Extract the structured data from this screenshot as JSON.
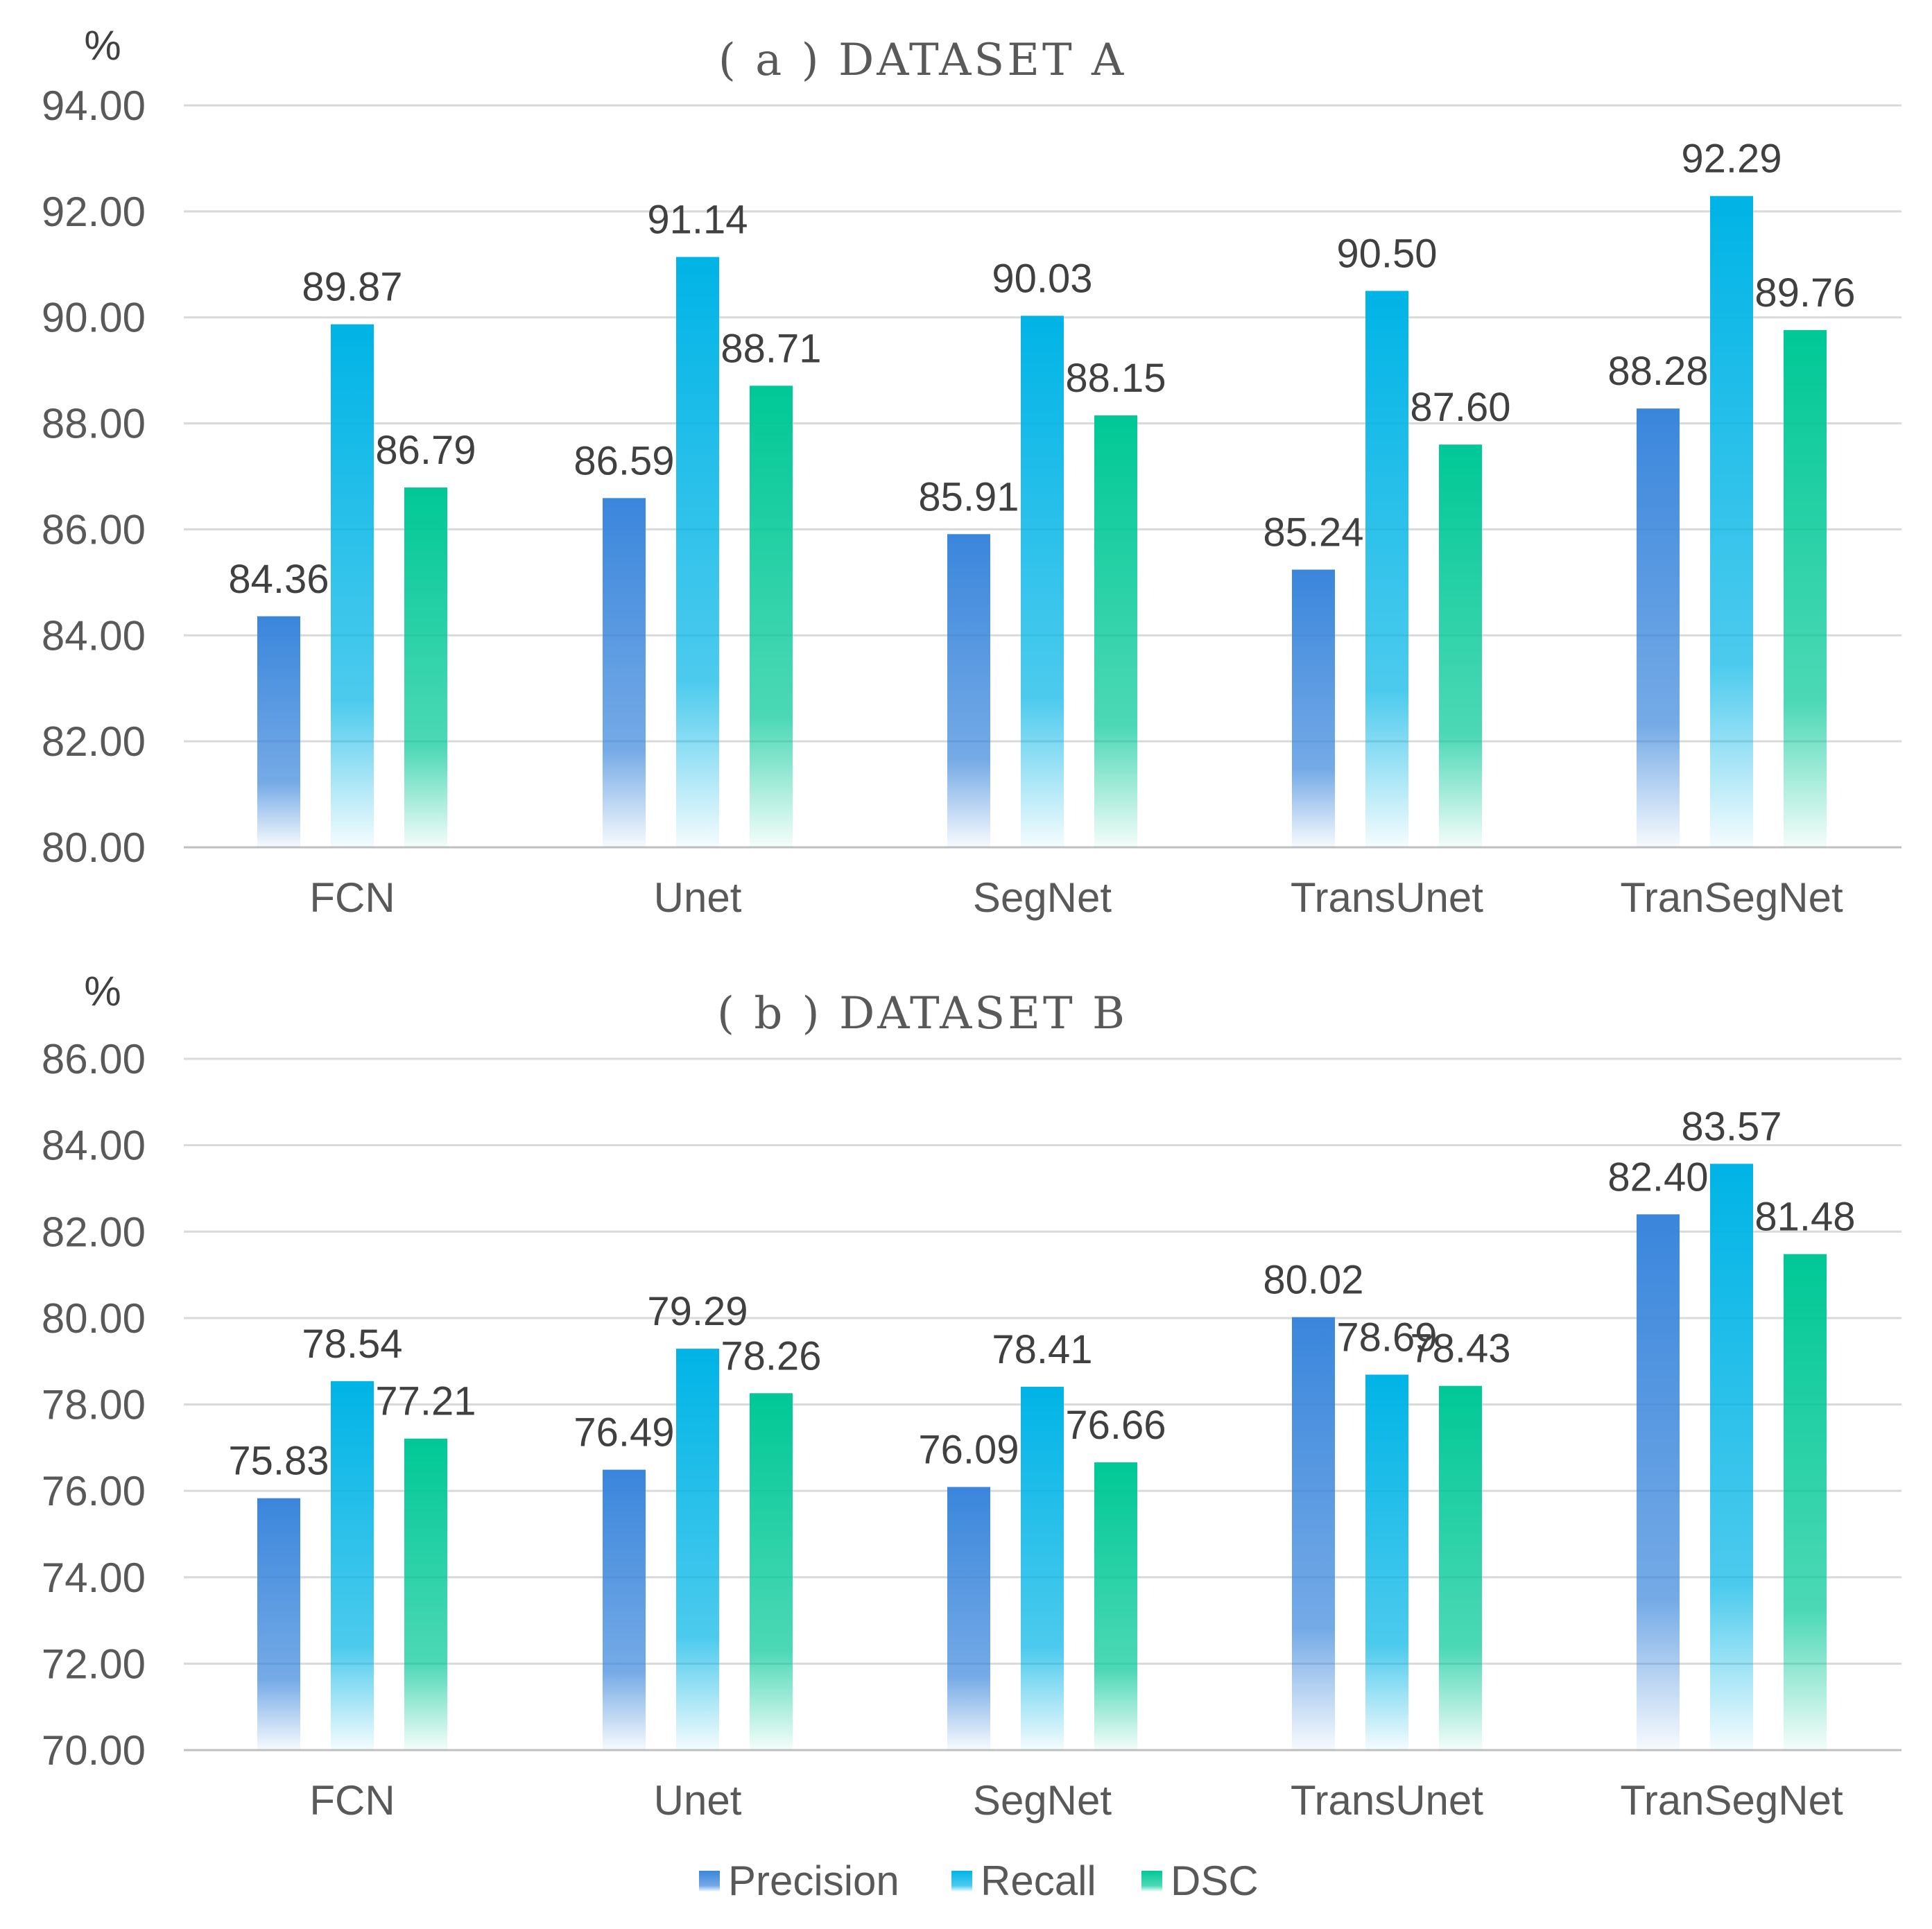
{
  "figure_name": "Segmentation metric comparison",
  "colors": {
    "precision": "#3a86dc",
    "recall": "#00b4e6",
    "dsc": "#00c896"
  },
  "legend": [
    "Precision",
    "Recall",
    "DSC"
  ],
  "chart_data": [
    {
      "type": "bar",
      "title": "( a ) DATASET A",
      "unit": "%",
      "categories": [
        "FCN",
        "Unet",
        "SegNet",
        "TransUnet",
        "TranSegNet"
      ],
      "series": [
        {
          "name": "Precision",
          "values": [
            84.36,
            86.59,
            85.91,
            85.24,
            88.28
          ]
        },
        {
          "name": "Recall",
          "values": [
            89.87,
            91.14,
            90.03,
            90.5,
            92.29
          ]
        },
        {
          "name": "DSC",
          "values": [
            86.79,
            88.71,
            88.15,
            87.6,
            89.76
          ]
        }
      ],
      "ylim": [
        80,
        94
      ],
      "yticks": [
        "80.00",
        "82.00",
        "84.00",
        "86.00",
        "88.00",
        "90.00",
        "92.00",
        "94.00"
      ],
      "grid": true
    },
    {
      "type": "bar",
      "title": "( b ) DATASET B",
      "unit": "%",
      "categories": [
        "FCN",
        "Unet",
        "SegNet",
        "TransUnet",
        "TranSegNet"
      ],
      "series": [
        {
          "name": "Precision",
          "values": [
            75.83,
            76.49,
            76.09,
            80.02,
            82.4
          ]
        },
        {
          "name": "Recall",
          "values": [
            78.54,
            79.29,
            78.41,
            78.69,
            83.57
          ]
        },
        {
          "name": "DSC",
          "values": [
            77.21,
            78.26,
            76.66,
            78.43,
            81.48
          ]
        }
      ],
      "ylim": [
        70,
        86
      ],
      "yticks": [
        "70.00",
        "72.00",
        "74.00",
        "76.00",
        "78.00",
        "80.00",
        "82.00",
        "84.00",
        "86.00"
      ],
      "grid": true
    }
  ]
}
